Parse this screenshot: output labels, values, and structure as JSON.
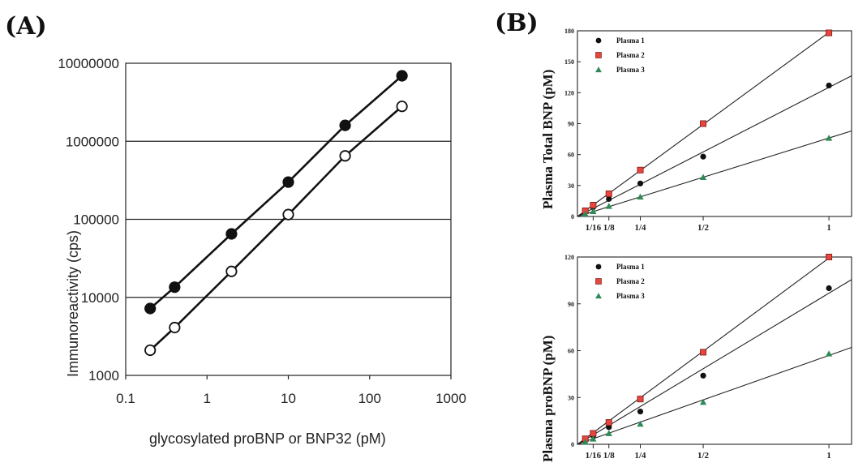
{
  "chart_data": [
    {
      "panel": "(A)",
      "type": "line",
      "xscale": "log",
      "yscale": "log",
      "xlim": [
        0.1,
        1000
      ],
      "ylim": [
        1000,
        10000000
      ],
      "xlabel": "glycosylated proBNP or BNP32  (pM)",
      "ylabel": "Immunoreactivity (cps)",
      "x_ticks": [
        "0.1",
        "1",
        "10",
        "100",
        "1000"
      ],
      "y_ticks": [
        "1000",
        "10000",
        "100000",
        "1000000",
        "10000000"
      ],
      "grid": "horizontal",
      "series": [
        {
          "marker": "filled-circle",
          "color": "#000000",
          "x": [
            0.2,
            0.4,
            2,
            10,
            50,
            250
          ],
          "y": [
            7200,
            13500,
            65000,
            300000,
            1600000,
            6900000
          ]
        },
        {
          "marker": "open-circle",
          "color": "#000000",
          "x": [
            0.2,
            0.4,
            2,
            10,
            50,
            250
          ],
          "y": [
            2100,
            4100,
            21500,
            115000,
            650000,
            2800000
          ]
        }
      ]
    },
    {
      "panel": "(B)",
      "type": "scatter",
      "ylabel": "Plasma Total BNP (pM)",
      "ylim": [
        0,
        180
      ],
      "y_ticks": [
        "0",
        "30",
        "60",
        "90",
        "120",
        "150",
        "180"
      ],
      "xlim": [
        0,
        1.09
      ],
      "x_ticks": [
        "1/16",
        "1/8",
        "1/4",
        "1/2",
        "1"
      ],
      "x_tick_values": [
        0.0625,
        0.125,
        0.25,
        0.5,
        1
      ],
      "legend_position": "top-left",
      "series": [
        {
          "name": "Plasma  1",
          "marker": "circle",
          "color": "#111111",
          "x": [
            0.0312,
            0.0625,
            0.125,
            0.25,
            0.5,
            1
          ],
          "y": [
            4.5,
            9,
            17,
            32,
            58,
            127
          ]
        },
        {
          "name": "Plasma  2",
          "marker": "square",
          "color": "#e8453c",
          "x": [
            0.0312,
            0.0625,
            0.125,
            0.25,
            0.5,
            1
          ],
          "y": [
            5.5,
            11,
            22,
            45,
            90,
            178
          ]
        },
        {
          "name": "Plasma  3",
          "marker": "triangle",
          "color": "#2e8b57",
          "x": [
            0.0312,
            0.0625,
            0.125,
            0.25,
            0.5,
            1
          ],
          "y": [
            2.5,
            5,
            10,
            19,
            38,
            76
          ]
        }
      ]
    },
    {
      "panel": "(B)",
      "type": "scatter",
      "ylabel": "Plasma proBNP (pM)",
      "ylim": [
        0,
        120
      ],
      "y_ticks": [
        "0",
        "30",
        "60",
        "90",
        "120"
      ],
      "xlim": [
        0,
        1.09
      ],
      "x_ticks": [
        "1/16",
        "1/8",
        "1/4",
        "1/2",
        "1"
      ],
      "x_tick_values": [
        0.0625,
        0.125,
        0.25,
        0.5,
        1
      ],
      "legend_position": "top-left",
      "series": [
        {
          "name": "Plasma  1",
          "marker": "circle",
          "color": "#111111",
          "x": [
            0.0312,
            0.0625,
            0.125,
            0.25,
            0.5,
            1
          ],
          "y": [
            3,
            5.5,
            11,
            21,
            44,
            100
          ]
        },
        {
          "name": "Plasma  2",
          "marker": "square",
          "color": "#e8453c",
          "x": [
            0.0312,
            0.0625,
            0.125,
            0.25,
            0.5,
            1
          ],
          "y": [
            3.5,
            7,
            14,
            29,
            59,
            120
          ]
        },
        {
          "name": "Plasma  3",
          "marker": "triangle",
          "color": "#2e8b57",
          "x": [
            0.0312,
            0.0625,
            0.125,
            0.25,
            0.5,
            1
          ],
          "y": [
            1.5,
            3.5,
            7,
            13,
            27,
            58
          ]
        }
      ]
    }
  ]
}
